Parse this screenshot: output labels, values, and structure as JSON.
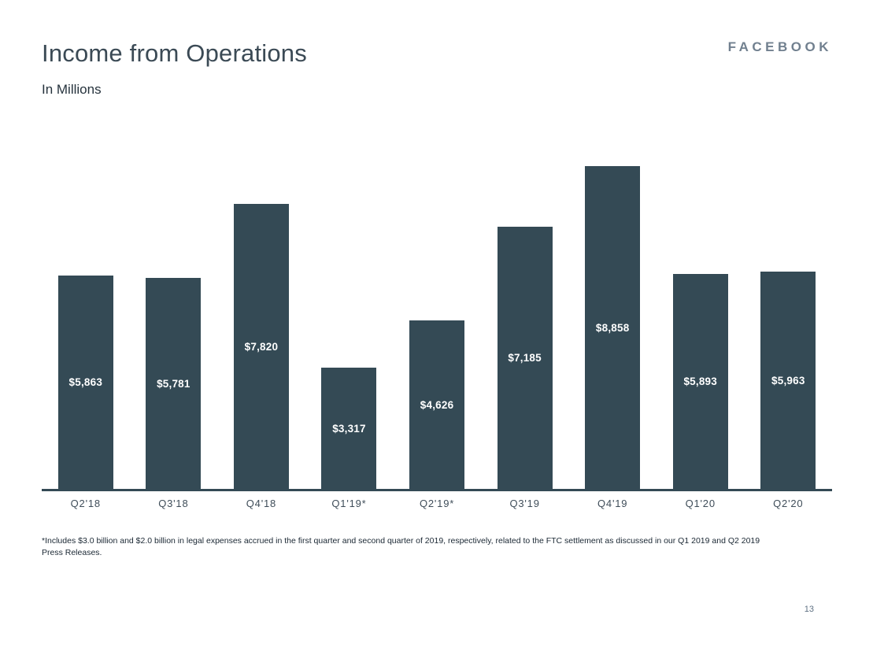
{
  "page": {
    "title": "Income from Operations",
    "subtitle": "In Millions",
    "brand": "FACEBOOK",
    "footnote": "*Includes $3.0 billion and $2.0 billion in legal expenses accrued in the first quarter and second quarter of 2019, respectively, related to the FTC settlement as discussed in our Q1 2019 and Q2 2019 Press Releases.",
    "page_number": "13"
  },
  "colors": {
    "background": "#ffffff",
    "bar": "#344a55",
    "axis": "#344a55",
    "title_text": "#3b4a55",
    "bar_label_text": "#ffffff",
    "category_text": "#3f4d59",
    "brand_text": "#71808f",
    "footnote_text": "#1a2733",
    "page_number_text": "#5f7183"
  },
  "chart_data": {
    "type": "bar",
    "title": "Income from Operations",
    "subtitle": "In Millions",
    "units": "USD millions",
    "categories": [
      "Q2'18",
      "Q3'18",
      "Q4'18",
      "Q1'19*",
      "Q2'19*",
      "Q3'19",
      "Q4'19",
      "Q1'20",
      "Q2'20"
    ],
    "values": [
      5863,
      5781,
      7820,
      3317,
      4626,
      7185,
      8858,
      5893,
      5963
    ],
    "data_labels": [
      "$5,863",
      "$5,781",
      "$7,820",
      "$3,317",
      "$4,626",
      "$7,185",
      "$8,858",
      "$5,893",
      "$5,963"
    ],
    "xlabel": "",
    "ylabel": "",
    "ylim": [
      0,
      8858
    ],
    "grid": false,
    "legend": null,
    "y_axis_visible": false,
    "label_position": "center-inside",
    "bar_color": "#344a55"
  }
}
